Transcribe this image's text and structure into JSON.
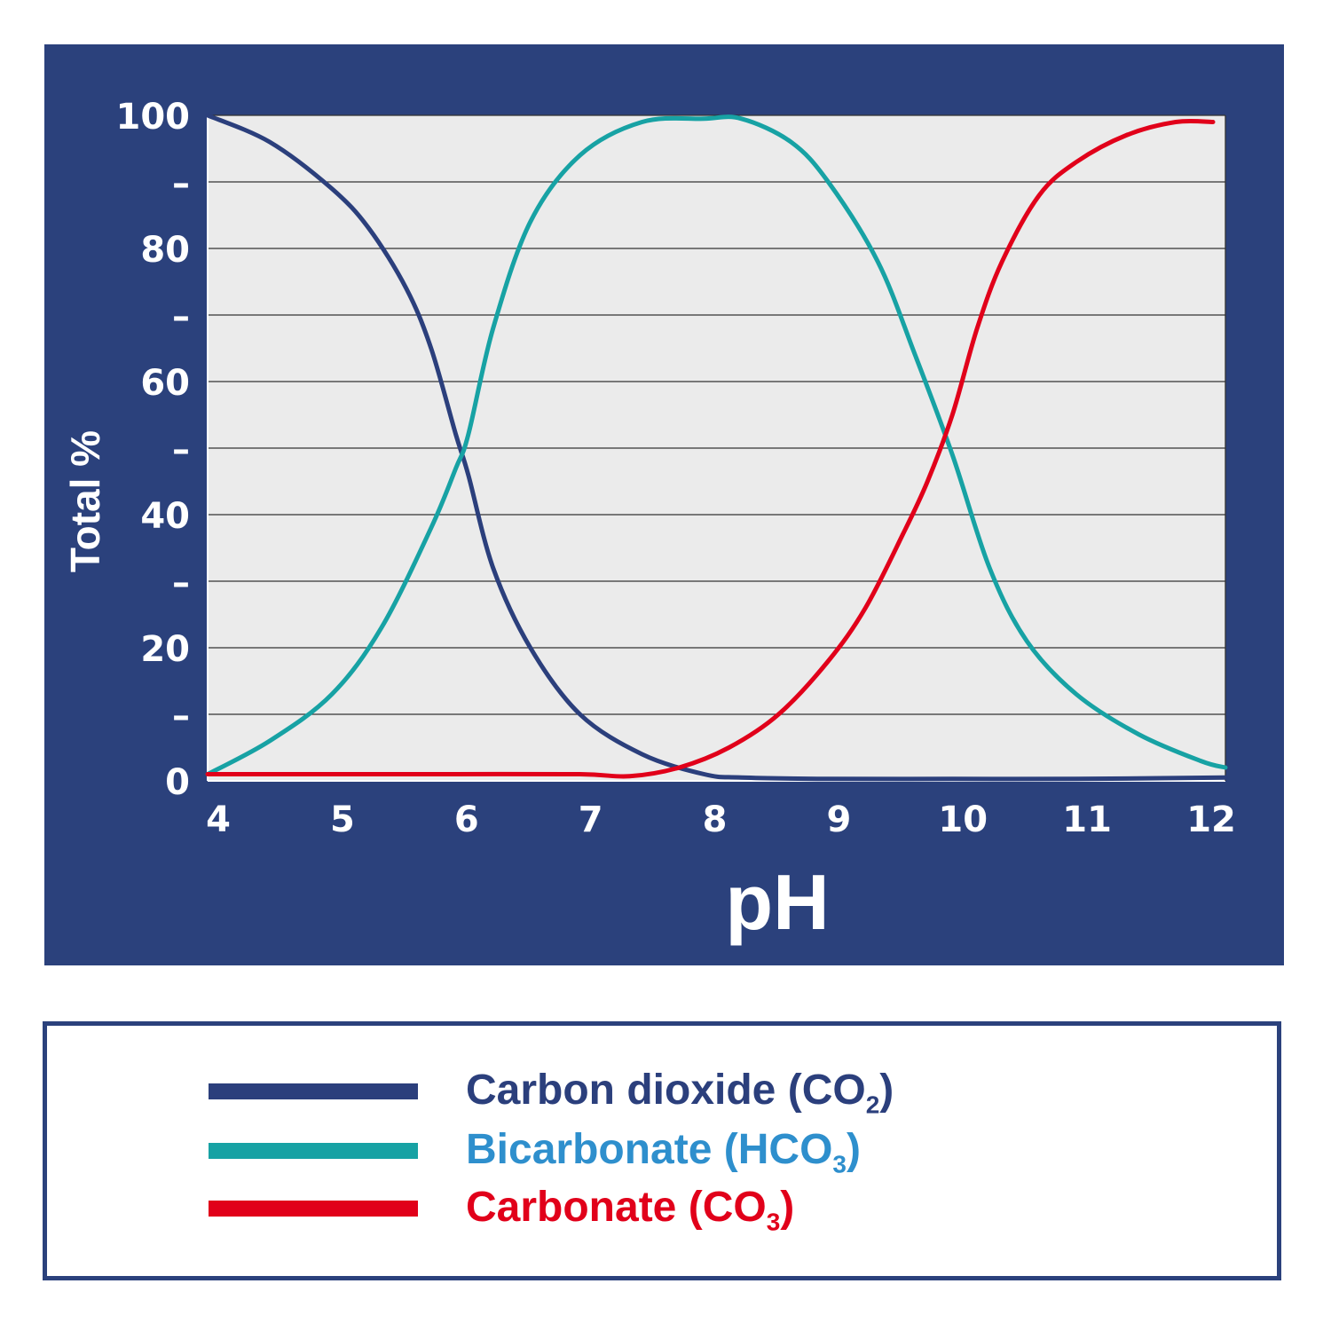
{
  "colors": {
    "panel_bg": "#2b417c",
    "plot_bg": "#ebebeb",
    "grid": "#333333",
    "carbon_dioxide": "#2b3f7c",
    "bicarbonate": "#17a2a4",
    "carbonate": "#e1001a",
    "bicarbonate_label": "#2e8fcd"
  },
  "chart_data": {
    "type": "line",
    "xlabel": "pH",
    "ylabel": "Total %",
    "xlim": [
      4,
      12.2
    ],
    "ylim": [
      0,
      100
    ],
    "x_ticks": [
      "4",
      "5",
      "6",
      "7",
      "8",
      "9",
      "10",
      "11",
      "12"
    ],
    "y_ticks": [
      "0",
      "–",
      "20",
      "–",
      "40",
      "–",
      "60",
      "–",
      "80",
      "–",
      "100"
    ],
    "grid": true,
    "legend_position": "bottom",
    "series": [
      {
        "name": "Carbon dioxide (CO2)",
        "color": "#2b3f7c",
        "x": [
          4.0,
          4.5,
          5.0,
          5.3,
          5.6,
          5.8,
          6.0,
          6.1,
          6.3,
          6.6,
          7.0,
          7.5,
          8.0,
          8.3,
          9.0,
          10.0,
          11.0,
          12.2
        ],
        "y": [
          100,
          96,
          89,
          83,
          74,
          65,
          52,
          46,
          32,
          20,
          10,
          4,
          1,
          0.5,
          0.3,
          0.3,
          0.3,
          0.5
        ]
      },
      {
        "name": "Bicarbonate (HCO3)",
        "color": "#17a2a4",
        "x": [
          4.0,
          4.5,
          5.0,
          5.4,
          5.8,
          6.0,
          6.1,
          6.3,
          6.6,
          7.0,
          7.5,
          8.0,
          8.3,
          8.7,
          9.0,
          9.4,
          9.7,
          10.0,
          10.3,
          10.6,
          11.0,
          11.5,
          12.0,
          12.2
        ],
        "y": [
          1,
          6,
          13,
          23,
          38,
          47,
          52,
          68,
          84,
          94,
          99,
          99.5,
          99.5,
          96,
          90,
          78,
          64,
          49,
          32,
          21,
          13,
          7,
          3,
          2
        ]
      },
      {
        "name": "Carbonate (CO3)",
        "color": "#e1001a",
        "x": [
          4.0,
          5.0,
          6.0,
          7.0,
          7.4,
          7.8,
          8.2,
          8.6,
          9.0,
          9.3,
          9.6,
          9.8,
          10.0,
          10.2,
          10.4,
          10.7,
          11.0,
          11.4,
          11.8,
          12.1
        ],
        "y": [
          1,
          1,
          1,
          1,
          0.7,
          2,
          5,
          10,
          18,
          26,
          37,
          45,
          55,
          68,
          78,
          88,
          93,
          97,
          99,
          99
        ]
      }
    ]
  },
  "legend": [
    {
      "name": "Carbon dioxide",
      "formula": "CO",
      "sub": "2",
      "color": "#2b3f7c",
      "text_color": "#2b3f7c"
    },
    {
      "name": "Bicarbonate",
      "formula": "HCO",
      "sub": "3",
      "color": "#17a2a4",
      "text_color": "#2e8fcd"
    },
    {
      "name": "Carbonate",
      "formula": "CO",
      "sub": "3",
      "color": "#e1001a",
      "text_color": "#e1001a"
    }
  ]
}
